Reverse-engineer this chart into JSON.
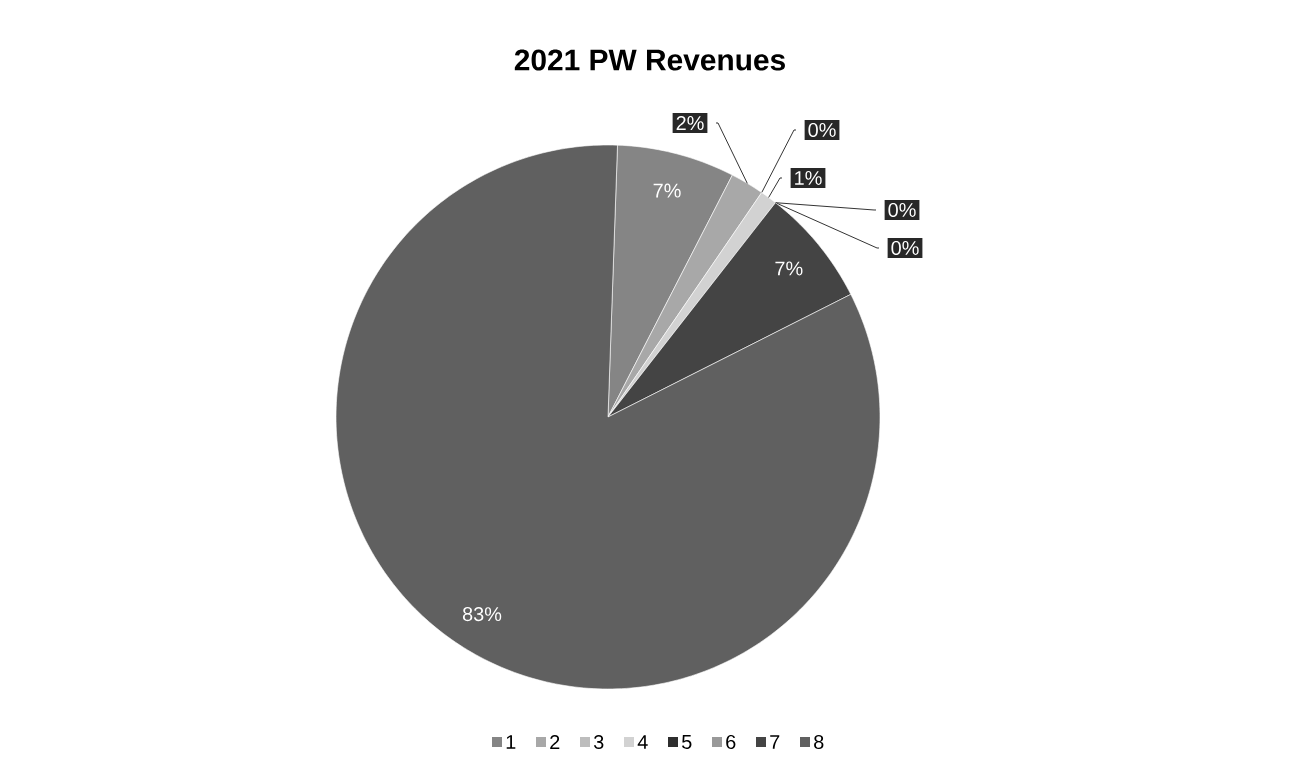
{
  "chart_data": {
    "type": "pie",
    "title": "2021 PW Revenues",
    "categories": [
      "1",
      "2",
      "3",
      "4",
      "5",
      "6",
      "7",
      "8"
    ],
    "values": [
      7,
      2,
      0,
      1,
      0,
      0,
      7,
      83
    ],
    "value_labels": [
      "7%",
      "2%",
      "0%",
      "1%",
      "0%",
      "0%",
      "7%",
      "83%"
    ],
    "colors": [
      "#858585",
      "#a8a8a8",
      "#bdbdbd",
      "#d2d2d2",
      "#2e2e2e",
      "#999999",
      "#444444",
      "#606060"
    ],
    "legend": "bottom"
  }
}
